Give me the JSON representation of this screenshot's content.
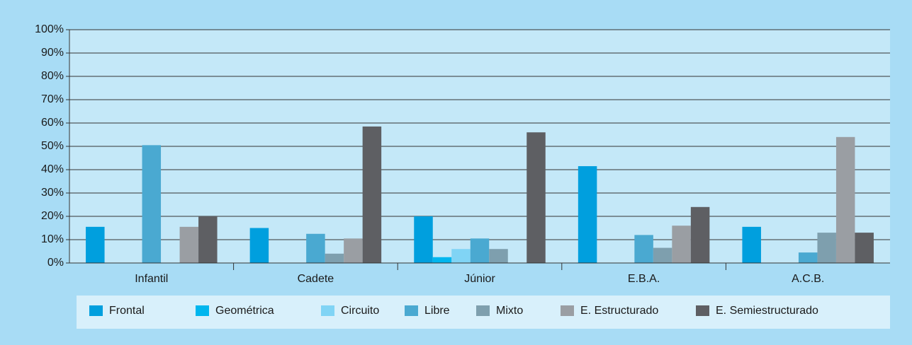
{
  "chart_data": {
    "type": "bar",
    "categories": [
      "Infantil",
      "Cadete",
      "Júnior",
      "E.B.A.",
      "A.C.B."
    ],
    "series": [
      {
        "name": "Frontal",
        "color": "#009fde",
        "values": [
          15.5,
          15,
          20,
          41.5,
          15.5
        ]
      },
      {
        "name": "Geométrica",
        "color": "#00b6ee",
        "values": [
          0,
          0,
          2.5,
          0,
          0
        ]
      },
      {
        "name": "Circuito",
        "color": "#80d4f5",
        "values": [
          0,
          0,
          6,
          0,
          0
        ]
      },
      {
        "name": "Libre",
        "color": "#4aa9d1",
        "values": [
          50.5,
          12.5,
          10.5,
          12,
          4.5
        ]
      },
      {
        "name": "Mixto",
        "color": "#7e9fae",
        "values": [
          0,
          4,
          6,
          6.5,
          13
        ]
      },
      {
        "name": "E. Estructurado",
        "color": "#9a9ea3",
        "values": [
          15.5,
          10.5,
          0,
          16,
          54
        ]
      },
      {
        "name": "E. Semiestructurado",
        "color": "#5e5f63",
        "values": [
          20,
          58.5,
          56,
          24,
          13
        ]
      }
    ],
    "ylim": [
      0,
      100
    ],
    "yticks": [
      {
        "value": 0,
        "label": "0%"
      },
      {
        "value": 10,
        "label": "10%"
      },
      {
        "value": 20,
        "label": "20%"
      },
      {
        "value": 30,
        "label": "30%"
      },
      {
        "value": 40,
        "label": "40%"
      },
      {
        "value": 50,
        "label": "50%"
      },
      {
        "value": 60,
        "label": "60%"
      },
      {
        "value": 70,
        "label": "70%"
      },
      {
        "value": 80,
        "label": "80%"
      },
      {
        "value": 90,
        "label": "90%"
      },
      {
        "value": 100,
        "label": "100%"
      }
    ],
    "grid": true,
    "legend": "bottom"
  }
}
